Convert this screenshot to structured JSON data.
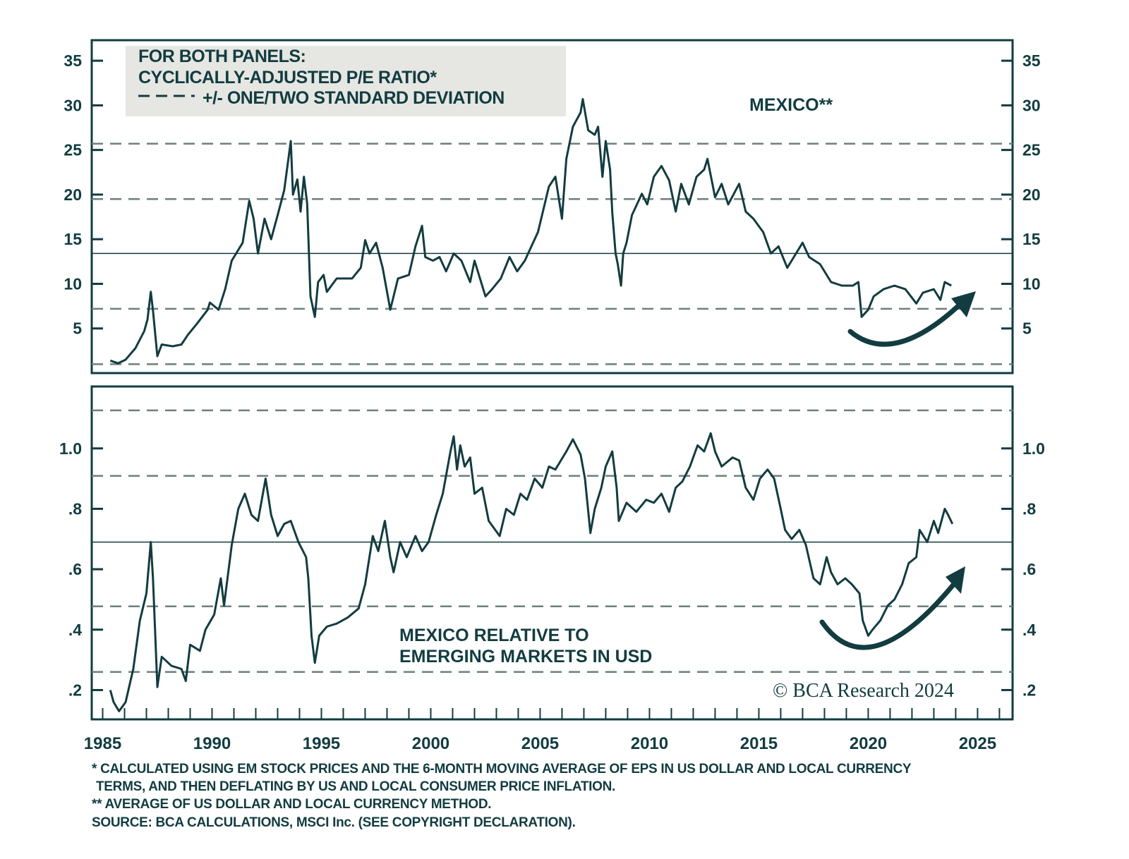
{
  "colors": {
    "line": "#123c40",
    "band": "#6e807d",
    "mean": "#123c40",
    "legend_bg": "#e6e6e2"
  },
  "legend": {
    "line1": "FOR BOTH PANELS:",
    "line2": "CYCLICALLY-ADJUSTED P/E RATIO*",
    "line3": "+/- ONE/TWO STANDARD DEVIATION"
  },
  "footnotes": {
    "f1a": "* CALCULATED USING EM STOCK PRICES AND THE 6-MONTH MOVING AVERAGE OF EPS IN US DOLLAR AND LOCAL CURRENCY",
    "f1b": "TERMS, AND THEN DEFLATING BY US AND LOCAL CONSUMER PRICE INFLATION.",
    "f2": "** AVERAGE OF US DOLLAR AND LOCAL CURRENCY METHOD.",
    "source": "SOURCE: BCA CALCULATIONS, MSCI Inc. (SEE COPYRIGHT DECLARATION)."
  },
  "credit": "© BCA Research 2024",
  "chart_data": [
    {
      "type": "line",
      "title": "MEXICO**",
      "xlim": [
        1984.5,
        2026.6
      ],
      "ylim": [
        0,
        37.3
      ],
      "x_ticks": [
        "1985",
        "1990",
        "1995",
        "2000",
        "2005",
        "2010",
        "2015",
        "2020",
        "2025"
      ],
      "y_ticks": [
        "5",
        "10",
        "15",
        "20",
        "25",
        "30",
        "35"
      ],
      "mean": 13.4,
      "std_bands": [
        25.7,
        19.5,
        7.2,
        1.0
      ],
      "annotation": "curved-up-arrow",
      "series": [
        {
          "x": [
            1985.35,
            1985.7,
            1986.05,
            1986.5,
            1986.9,
            1987.05,
            1987.2,
            1987.3,
            1987.5,
            1987.7,
            1988.2,
            1988.6,
            1988.9,
            1989.3,
            1989.8,
            1989.9,
            1990.3,
            1990.6,
            1990.9,
            1991.4,
            1991.7,
            1991.9,
            1992.1,
            1992.4,
            1992.7,
            1993.0,
            1993.3,
            1993.6,
            1993.7,
            1993.9,
            1994.05,
            1994.2,
            1994.35,
            1994.5,
            1994.7,
            1994.85,
            1995.1,
            1995.25,
            1995.7,
            1996.4,
            1996.8,
            1997.0,
            1997.2,
            1997.5,
            1997.8,
            1998.15,
            1998.5,
            1999.0,
            1999.3,
            1999.6,
            1999.75,
            2000.1,
            2000.4,
            2000.7,
            2001.05,
            2001.4,
            2001.8,
            2002.0,
            2002.5,
            2002.8,
            2003.2,
            2003.6,
            2003.95,
            2004.3,
            2004.6,
            2004.9,
            2005.4,
            2005.7,
            2006.0,
            2006.2,
            2006.5,
            2006.85,
            2006.95,
            2007.2,
            2007.5,
            2007.65,
            2007.85,
            2008.0,
            2008.2,
            2008.3,
            2008.45,
            2008.55,
            2008.7,
            2008.8,
            2008.95,
            2009.2,
            2009.65,
            2009.9,
            2010.2,
            2010.55,
            2010.9,
            2011.2,
            2011.45,
            2011.8,
            2012.15,
            2012.5,
            2012.65,
            2013.0,
            2013.3,
            2013.6,
            2014.1,
            2014.4,
            2014.75,
            2015.2,
            2015.55,
            2015.9,
            2016.3,
            2016.6,
            2017.0,
            2017.3,
            2017.8,
            2018.3,
            2018.8,
            2019.3,
            2019.55,
            2019.7,
            2020.0,
            2020.25,
            2020.7,
            2021.2,
            2021.7,
            2022.2,
            2022.5,
            2023.0,
            2023.3,
            2023.5,
            2023.8
          ],
          "y": [
            1.4,
            1.1,
            1.5,
            2.8,
            4.7,
            6.0,
            9.1,
            7.0,
            1.9,
            3.2,
            3.0,
            3.2,
            4.3,
            5.5,
            7.1,
            7.9,
            7.1,
            9.4,
            12.6,
            14.6,
            19.3,
            17.3,
            13.4,
            17.3,
            15.0,
            17.7,
            20.5,
            26.0,
            20.0,
            21.7,
            18.1,
            22.0,
            19.0,
            8.6,
            6.3,
            10.2,
            11.0,
            9.1,
            10.6,
            10.6,
            11.8,
            14.9,
            13.4,
            14.6,
            11.8,
            7.1,
            10.6,
            11.0,
            14.2,
            16.5,
            13.0,
            12.6,
            13.0,
            11.4,
            13.4,
            12.6,
            10.2,
            12.6,
            8.6,
            9.4,
            10.6,
            13.0,
            11.4,
            12.6,
            14.2,
            15.8,
            20.9,
            22.0,
            17.3,
            24.0,
            27.6,
            29.2,
            30.7,
            27.2,
            26.7,
            27.6,
            22.0,
            26.0,
            22.8,
            18.0,
            13.4,
            12.2,
            9.8,
            13.4,
            14.6,
            17.7,
            20.1,
            18.9,
            22.0,
            23.2,
            21.6,
            18.1,
            21.2,
            18.9,
            22.0,
            22.8,
            24.0,
            19.7,
            21.2,
            18.9,
            21.2,
            18.1,
            17.3,
            15.8,
            13.4,
            14.2,
            11.8,
            13.0,
            14.6,
            13.0,
            12.2,
            10.2,
            9.8,
            9.8,
            10.2,
            6.3,
            7.1,
            8.6,
            9.4,
            9.8,
            9.4,
            7.8,
            9.0,
            9.4,
            8.2,
            10.2,
            9.8
          ]
        }
      ]
    },
    {
      "type": "line",
      "title": "MEXICO RELATIVE TO EMERGING MARKETS IN USD",
      "xlim": [
        1984.5,
        2026.6
      ],
      "ylim": [
        0.103,
        1.205
      ],
      "x_ticks": [
        "1985",
        "1990",
        "1995",
        "2000",
        "2005",
        "2010",
        "2015",
        "2020",
        "2025"
      ],
      "y_ticks": [
        ".2",
        ".4",
        ".6",
        ".8",
        "1.0"
      ],
      "mean": 0.69,
      "std_bands": [
        1.126,
        0.909,
        0.477,
        0.26
      ],
      "annotation": "curved-up-arrow",
      "series": [
        {
          "x": [
            1985.35,
            1985.5,
            1985.75,
            1986.05,
            1986.4,
            1986.7,
            1987.0,
            1987.2,
            1987.3,
            1987.5,
            1987.7,
            1988.15,
            1988.6,
            1988.8,
            1989.0,
            1989.45,
            1989.7,
            1990.1,
            1990.4,
            1990.55,
            1990.9,
            1991.2,
            1991.5,
            1991.8,
            1992.1,
            1992.45,
            1992.7,
            1993.0,
            1993.3,
            1993.6,
            1993.95,
            1994.3,
            1994.4,
            1994.55,
            1994.7,
            1994.9,
            1995.25,
            1995.7,
            1996.2,
            1996.7,
            1997.0,
            1997.35,
            1997.6,
            1997.9,
            1998.15,
            1998.3,
            1998.6,
            1998.9,
            1999.3,
            1999.6,
            1999.9,
            2000.25,
            2000.55,
            2000.9,
            2001.05,
            2001.2,
            2001.35,
            2001.55,
            2001.8,
            2002.0,
            2002.35,
            2002.65,
            2003.15,
            2003.45,
            2003.8,
            2004.1,
            2004.4,
            2004.75,
            2005.1,
            2005.4,
            2005.7,
            2006.2,
            2006.5,
            2006.85,
            2007.05,
            2007.3,
            2007.5,
            2007.8,
            2008.0,
            2008.3,
            2008.5,
            2008.6,
            2008.95,
            2009.4,
            2009.85,
            2010.2,
            2010.55,
            2010.9,
            2011.2,
            2011.5,
            2011.85,
            2012.2,
            2012.5,
            2012.8,
            2013.0,
            2013.3,
            2013.8,
            2014.1,
            2014.4,
            2014.75,
            2015.05,
            2015.4,
            2015.7,
            2016.0,
            2016.2,
            2016.5,
            2016.85,
            2017.15,
            2017.5,
            2017.8,
            2018.1,
            2018.3,
            2018.6,
            2018.95,
            2019.25,
            2019.6,
            2019.75,
            2020.0,
            2020.2,
            2020.55,
            2020.9,
            2021.2,
            2021.55,
            2021.85,
            2022.2,
            2022.35,
            2022.7,
            2023.0,
            2023.2,
            2023.5,
            2023.65,
            2023.85
          ],
          "y": [
            0.2,
            0.16,
            0.13,
            0.16,
            0.27,
            0.43,
            0.52,
            0.69,
            0.57,
            0.21,
            0.31,
            0.28,
            0.27,
            0.23,
            0.35,
            0.33,
            0.4,
            0.45,
            0.57,
            0.48,
            0.68,
            0.8,
            0.85,
            0.78,
            0.76,
            0.9,
            0.78,
            0.71,
            0.75,
            0.76,
            0.69,
            0.64,
            0.57,
            0.38,
            0.29,
            0.38,
            0.41,
            0.42,
            0.44,
            0.47,
            0.55,
            0.71,
            0.66,
            0.76,
            0.64,
            0.59,
            0.69,
            0.64,
            0.71,
            0.66,
            0.69,
            0.78,
            0.85,
            0.99,
            1.04,
            0.93,
            1.01,
            0.94,
            0.97,
            0.85,
            0.87,
            0.76,
            0.71,
            0.8,
            0.78,
            0.85,
            0.83,
            0.9,
            0.87,
            0.94,
            0.93,
            0.99,
            1.03,
            0.98,
            0.9,
            0.72,
            0.8,
            0.87,
            0.94,
            0.99,
            0.87,
            0.76,
            0.82,
            0.79,
            0.83,
            0.82,
            0.85,
            0.79,
            0.87,
            0.89,
            0.94,
            1.01,
            0.99,
            1.05,
            0.99,
            0.94,
            0.97,
            0.96,
            0.87,
            0.83,
            0.9,
            0.93,
            0.9,
            0.8,
            0.73,
            0.7,
            0.73,
            0.68,
            0.57,
            0.55,
            0.64,
            0.59,
            0.55,
            0.57,
            0.55,
            0.52,
            0.43,
            0.38,
            0.4,
            0.43,
            0.48,
            0.5,
            0.55,
            0.62,
            0.64,
            0.73,
            0.69,
            0.76,
            0.72,
            0.8,
            0.78,
            0.75
          ]
        }
      ]
    }
  ]
}
